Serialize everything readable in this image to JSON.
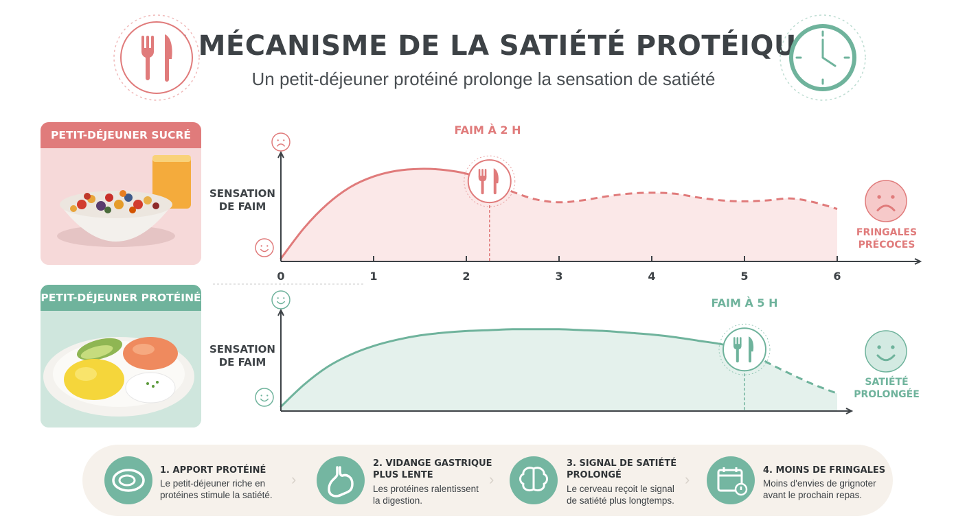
{
  "header": {
    "title": "LE MÉCANISME DE LA SATIÉTÉ PROTÉIQUE",
    "subtitle": "Un petit-déjeuner protéiné prolonge la sensation de satiété"
  },
  "colors": {
    "sucre": "#e07b7b",
    "proteine": "#6fb39c",
    "sucre_fill": "#fbe8e8",
    "proteine_fill": "#e4f1ec"
  },
  "cards": {
    "sucre_label": "PETIT-DÉJEUNER SUCRÉ",
    "proteine_label": "PETIT-DÉJEUNER PROTÉINÉ"
  },
  "chart_data": [
    {
      "type": "line",
      "panel": "sucre",
      "ylabel": "SENSATION\nDE FAIM",
      "x_ticks": [
        "0",
        "1",
        "2",
        "3",
        "4",
        "5",
        "6"
      ],
      "xlim": [
        0,
        6
      ],
      "x": [
        0,
        0.25,
        0.5,
        0.75,
        1.0,
        1.25,
        1.5,
        1.75,
        2.0,
        2.25,
        2.5,
        2.75,
        3.0,
        3.25,
        3.5,
        3.75,
        4.0,
        4.25,
        4.5,
        4.75,
        5.0,
        5.25,
        5.5,
        5.75,
        6.0
      ],
      "y": [
        0.03,
        0.35,
        0.6,
        0.78,
        0.89,
        0.95,
        0.97,
        0.96,
        0.92,
        0.84,
        0.73,
        0.65,
        0.62,
        0.64,
        0.68,
        0.71,
        0.72,
        0.71,
        0.67,
        0.64,
        0.63,
        0.64,
        0.66,
        0.62,
        0.55
      ],
      "dashed_from": 2.25,
      "marker_x": 2.25,
      "callout": "FAIM À 2 H",
      "end_label": "FRINGALES\nPRÉCOCES",
      "ylim": [
        0,
        1.1
      ]
    },
    {
      "type": "line",
      "panel": "proteine",
      "ylabel": "SENSATION\nDE FAIM",
      "xlim": [
        0,
        6
      ],
      "x": [
        0,
        0.25,
        0.5,
        0.75,
        1.0,
        1.25,
        1.5,
        1.75,
        2.0,
        2.25,
        2.5,
        2.75,
        3.0,
        3.25,
        3.5,
        3.75,
        4.0,
        4.25,
        4.5,
        4.75,
        5.0,
        5.25,
        5.5,
        5.75,
        6.0
      ],
      "y": [
        0.05,
        0.3,
        0.5,
        0.64,
        0.74,
        0.81,
        0.86,
        0.89,
        0.91,
        0.92,
        0.93,
        0.93,
        0.93,
        0.92,
        0.91,
        0.89,
        0.87,
        0.84,
        0.8,
        0.76,
        0.7,
        0.55,
        0.42,
        0.3,
        0.2
      ],
      "dashed_from": 5.0,
      "marker_x": 5.0,
      "callout": "FAIM À 5 H",
      "end_label": "SATIÉTÉ\nPROLONGÉE",
      "ylim": [
        0,
        1.1
      ]
    }
  ],
  "steps": [
    {
      "title": "1. APPORT PROTÉINÉ",
      "desc": "Le petit-déjeuner riche en\nprotéines stimule la satiété.",
      "icon": "egg-icon"
    },
    {
      "title": "2. VIDANGE GASTRIQUE\nPLUS LENTE",
      "desc": "Les protéines ralentissent\nla digestion.",
      "icon": "stomach-icon"
    },
    {
      "title": "3. SIGNAL DE SATIÉTÉ\nPROLONGÉ",
      "desc": "Le cerveau reçoit le signal\nde satiété plus longtemps.",
      "icon": "brain-icon"
    },
    {
      "title": "4. MOINS DE FRINGALES",
      "desc": "Moins d'envies de grignoter\navant le prochain repas.",
      "icon": "calendar-icon"
    }
  ]
}
